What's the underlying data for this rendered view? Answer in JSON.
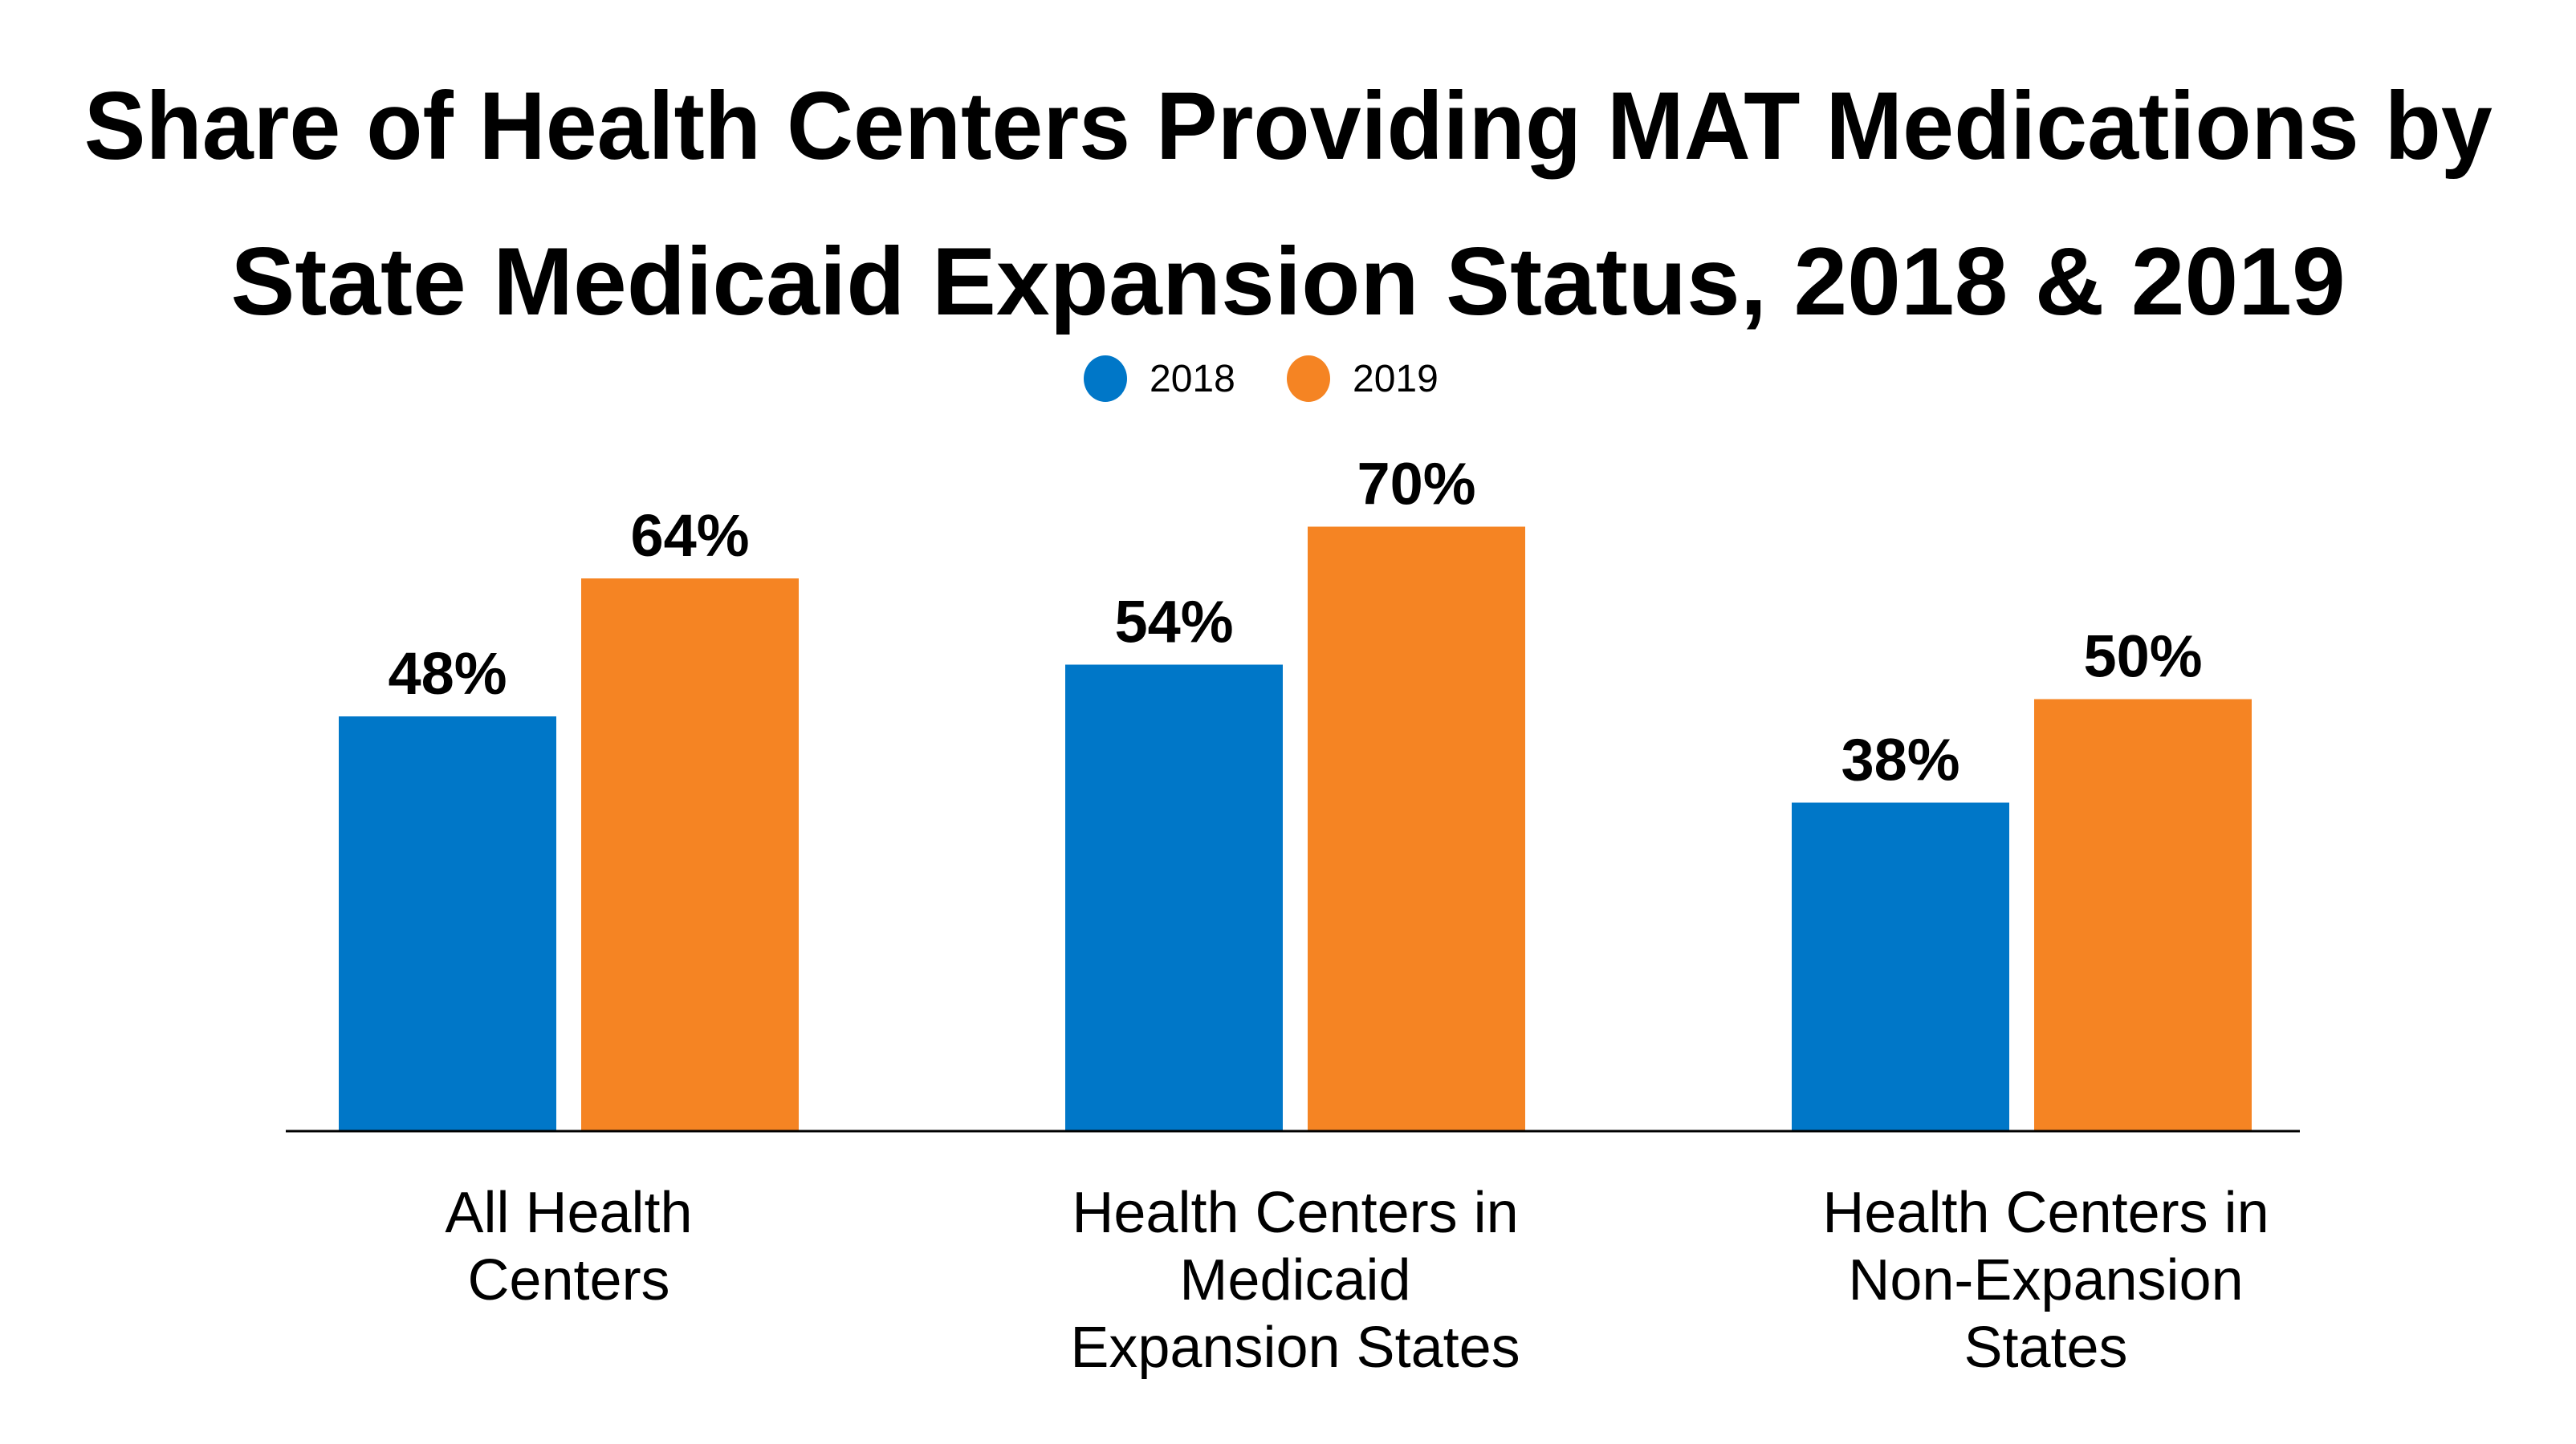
{
  "chart_data": {
    "type": "bar",
    "title": "Share of Health Centers Providing MAT Medications by State Medicaid Expansion Status, 2018 & 2019",
    "title_lines": [
      "Share of Health Centers Providing MAT Medications by",
      "State Medicaid Expansion Status, 2018 & 2019"
    ],
    "categories": [
      "All Health Centers",
      "Health Centers in Medicaid Expansion States",
      "Health Centers in Non-Expansion States"
    ],
    "category_lines": [
      [
        "All Health",
        "Centers"
      ],
      [
        "Health Centers in",
        "Medicaid",
        "Expansion States"
      ],
      [
        "Health Centers in",
        "Non-Expansion",
        "States"
      ]
    ],
    "series": [
      {
        "name": "2018",
        "color": "#0077C8",
        "values": [
          48,
          54,
          38
        ],
        "labels": [
          "48%",
          "54%",
          "38%"
        ]
      },
      {
        "name": "2019",
        "color": "#F58423",
        "values": [
          64,
          70,
          50
        ],
        "labels": [
          "64%",
          "70%",
          "50%"
        ]
      }
    ],
    "xlabel": "",
    "ylabel": "",
    "ylim": [
      0,
      100
    ],
    "grid": false,
    "legend": "top-center"
  }
}
